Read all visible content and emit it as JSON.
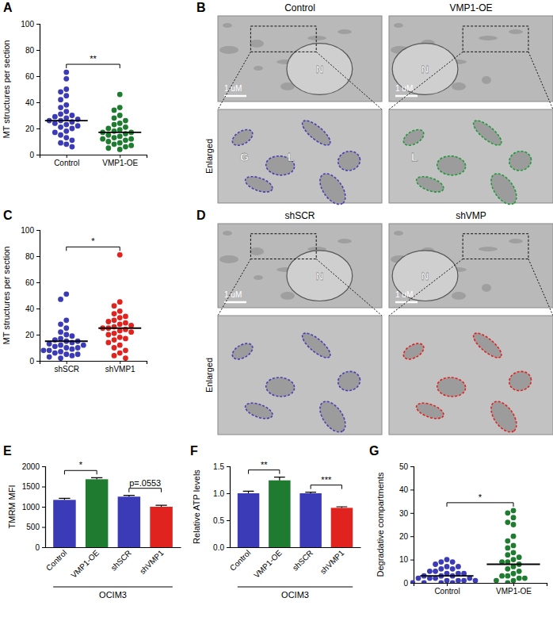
{
  "chart_data": [
    {
      "panel": "A",
      "type": "dot",
      "categories": [
        "Control",
        "VMP1-OE"
      ],
      "colors": [
        "#3b3bb8",
        "#1e7b30"
      ],
      "ylabel": "MT structures per section",
      "ylim": [
        0,
        100
      ],
      "yticks": [
        0,
        20,
        40,
        60,
        80,
        100
      ],
      "values": [
        [
          63,
          58,
          50,
          48,
          45,
          42,
          38,
          36,
          33,
          31,
          30,
          29,
          28,
          27,
          26,
          26,
          25,
          24,
          23,
          22,
          21,
          20,
          18,
          17,
          15,
          13,
          11,
          9,
          8,
          6
        ],
        [
          46,
          36,
          34,
          30,
          28,
          26,
          24,
          23,
          21,
          20,
          19,
          18,
          17,
          17,
          16,
          15,
          14,
          13,
          12,
          12,
          11,
          10,
          9,
          8,
          7,
          6,
          5,
          4
        ]
      ],
      "median": [
        26,
        17
      ],
      "annotations": [
        {
          "text": "**",
          "groups": [
            0,
            1
          ]
        }
      ]
    },
    {
      "panel": "C",
      "type": "dot",
      "categories": [
        "shSCR",
        "shVMP1"
      ],
      "colors": [
        "#3b3bb8",
        "#e0231f"
      ],
      "ylabel": "MT structures per section",
      "ylim": [
        0,
        100
      ],
      "yticks": [
        0,
        20,
        40,
        60,
        80,
        100
      ],
      "values": [
        [
          51,
          47,
          31,
          28,
          25,
          22,
          20,
          19,
          17,
          16,
          15,
          15,
          14,
          13,
          12,
          12,
          11,
          10,
          10,
          9,
          8,
          8,
          7,
          6,
          5,
          5,
          4,
          3,
          2
        ],
        [
          81,
          45,
          42,
          38,
          36,
          34,
          33,
          31,
          30,
          29,
          28,
          27,
          26,
          25,
          25,
          24,
          23,
          22,
          21,
          20,
          18,
          17,
          16,
          14,
          12,
          10,
          8,
          6,
          4,
          2
        ]
      ],
      "median": [
        15,
        25
      ],
      "annotations": [
        {
          "text": "*",
          "groups": [
            0,
            1
          ]
        }
      ]
    },
    {
      "panel": "E",
      "type": "bar",
      "categories": [
        "Control",
        "VMP1-OE",
        "shSCR",
        "shVMP1"
      ],
      "colors": [
        "#3b3bb8",
        "#1e7b30",
        "#3b3bb8",
        "#e0231f"
      ],
      "values": [
        1170,
        1680,
        1250,
        1000
      ],
      "errors": [
        40,
        40,
        30,
        35
      ],
      "ylabel": "TMRM MFI",
      "ylim": [
        0,
        2000
      ],
      "yticks": [
        0,
        500,
        1000,
        1500,
        2000
      ],
      "group_label": "OCIM3",
      "annotations": [
        {
          "text": "*",
          "groups": [
            0,
            1
          ]
        },
        {
          "text": "p=.0553",
          "groups": [
            2,
            3
          ]
        }
      ]
    },
    {
      "panel": "F",
      "type": "bar",
      "categories": [
        "Control",
        "VMP1-OE",
        "shSCR",
        "shVMP1"
      ],
      "colors": [
        "#3b3bb8",
        "#1e7b30",
        "#3b3bb8",
        "#e0231f"
      ],
      "values": [
        1.0,
        1.24,
        1.0,
        0.73
      ],
      "errors": [
        0.04,
        0.06,
        0.02,
        0.02
      ],
      "ylabel": "Relative ATP levels",
      "ylim": [
        0,
        1.5
      ],
      "yticks": [
        {
          "value": 0,
          "label": "0.0"
        },
        0.5,
        {
          "value": 1,
          "label": "1.0"
        },
        1.5
      ],
      "group_label": "OCIM3",
      "annotations": [
        {
          "text": "**",
          "groups": [
            0,
            1
          ]
        },
        {
          "text": "***",
          "groups": [
            2,
            3
          ]
        }
      ]
    },
    {
      "panel": "G",
      "type": "dot",
      "categories": [
        "Control",
        "VMP1-OE"
      ],
      "colors": [
        "#3b3bb8",
        "#1e7b30"
      ],
      "ylabel": "Degradative compartments",
      "ylim": [
        0,
        50
      ],
      "yticks": [
        0,
        10,
        20,
        30,
        40,
        50
      ],
      "values": [
        [
          10,
          9,
          9,
          8,
          7,
          7,
          6,
          6,
          5,
          5,
          4,
          4,
          4,
          3,
          3,
          3,
          2,
          2,
          2,
          2,
          1,
          1,
          1,
          1,
          0,
          0,
          0,
          0
        ],
        [
          31,
          30,
          28,
          26,
          25,
          20,
          18,
          16,
          15,
          13,
          12,
          11,
          10,
          9,
          9,
          8,
          7,
          6,
          5,
          4,
          3,
          3,
          2,
          2,
          1,
          1,
          0
        ]
      ],
      "median": [
        3,
        8
      ],
      "annotations": [
        {
          "text": "*",
          "groups": [
            0,
            1
          ]
        }
      ]
    }
  ],
  "images": [
    {
      "panel": "B",
      "row_label": "Enlarged",
      "columns": [
        {
          "title": "Control",
          "color": "#4b3fb0",
          "labels": [
            "N"
          ],
          "scale_bar": "1 uM",
          "enlarged_labels": [
            "G",
            "L"
          ]
        },
        {
          "title": "VMP1-OE",
          "color": "#1e9a3a",
          "labels": [
            "N"
          ],
          "scale_bar": "1 uM",
          "enlarged_labels": [
            "L"
          ]
        }
      ]
    },
    {
      "panel": "D",
      "row_label": "Enlarged",
      "columns": [
        {
          "title": "shSCR",
          "color": "#4b3fb0",
          "labels": [
            "N"
          ],
          "scale_bar": "1 uM"
        },
        {
          "title": "shVMP",
          "color": "#e0231f",
          "labels": [
            "N"
          ],
          "scale_bar": "1 uM"
        }
      ]
    }
  ]
}
